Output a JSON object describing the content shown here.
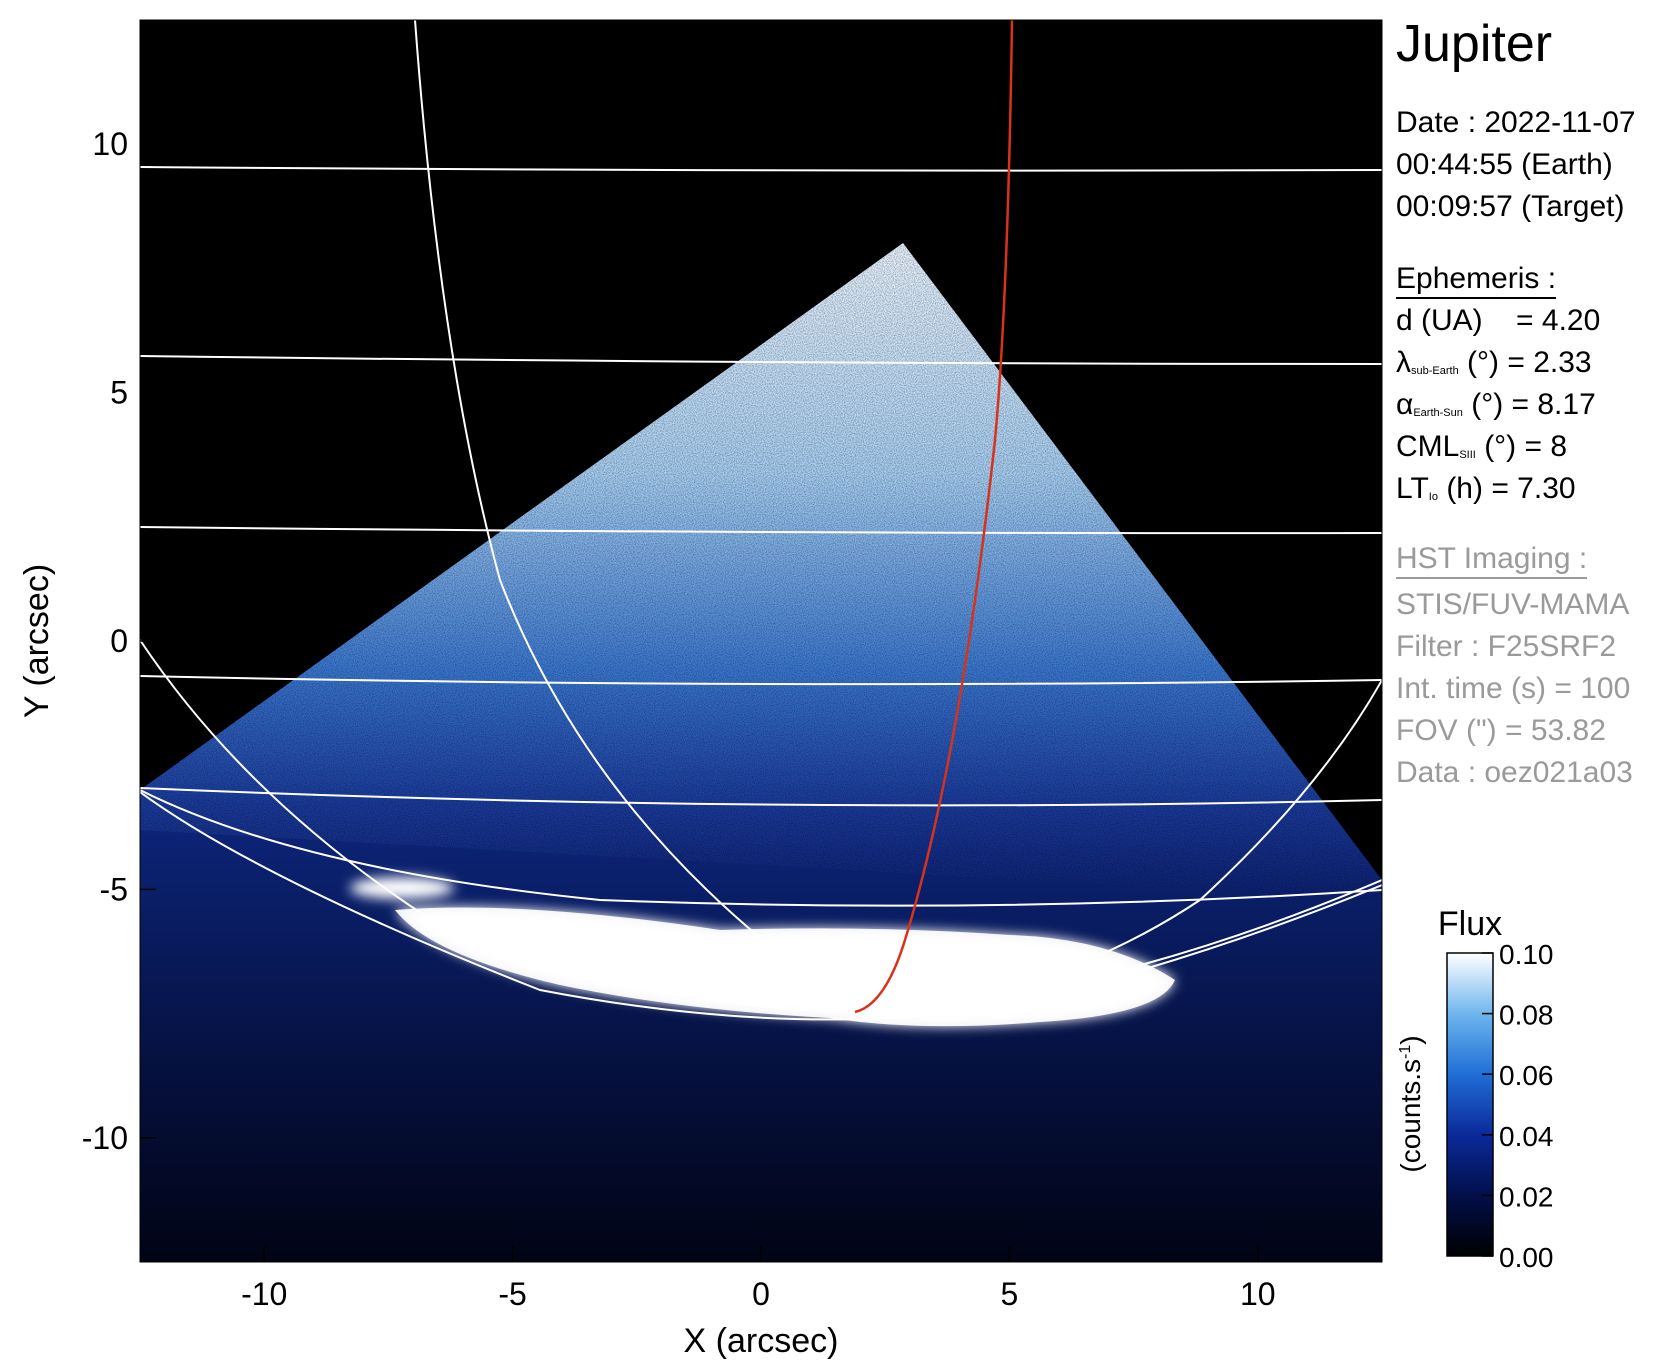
{
  "colors": {
    "background": "#000000",
    "grid": "#ffffff",
    "trace": "#d8321a",
    "info_gray": "#9a9a9a"
  },
  "panel": {
    "title": "Jupiter",
    "date_line": "Date : 2022-11-07",
    "earth_time": "00:44:55 (Earth)",
    "target_time": "00:09:57 (Target)",
    "ephemeris_header": "Ephemeris :",
    "eph": [
      {
        "sym": "d (UA)",
        "sub": "",
        "rest": "    = 4.20"
      },
      {
        "sym": "λ",
        "sub": "sub-Earth",
        "rest": " (°) = 2.33"
      },
      {
        "sym": "α",
        "sub": "Earth-Sun",
        "rest": " (°) = 8.17"
      },
      {
        "sym": "CML",
        "sub": "SIII",
        "rest": " (°) = 8"
      },
      {
        "sym": "LT",
        "sub": "Io",
        "rest": " (h) = 7.30"
      }
    ],
    "hst_header": "HST Imaging :",
    "hst": [
      "STIS/FUV-MAMA",
      "Filter : F25SRF2",
      "Int. time (s) = 100",
      "FOV (\") = 53.82",
      "Data : oez021a03"
    ]
  },
  "axes": {
    "xlabel": "X (arcsec)",
    "ylabel": "Y (arcsec)",
    "xlim": [
      -12.5,
      12.5
    ],
    "ylim": [
      -12.5,
      12.5
    ],
    "xticks": [
      -10,
      -5,
      0,
      5,
      10
    ],
    "yticks": [
      -10,
      -5,
      0,
      5,
      10
    ]
  },
  "colorbar": {
    "title": "Flux",
    "unit_label": "(counts.s",
    "unit_sup": "-1",
    "unit_close": ")",
    "ticks": [
      "0.10",
      "0.08",
      "0.06",
      "0.04",
      "0.02",
      "0.00"
    ],
    "range": [
      0.0,
      0.1
    ]
  }
}
